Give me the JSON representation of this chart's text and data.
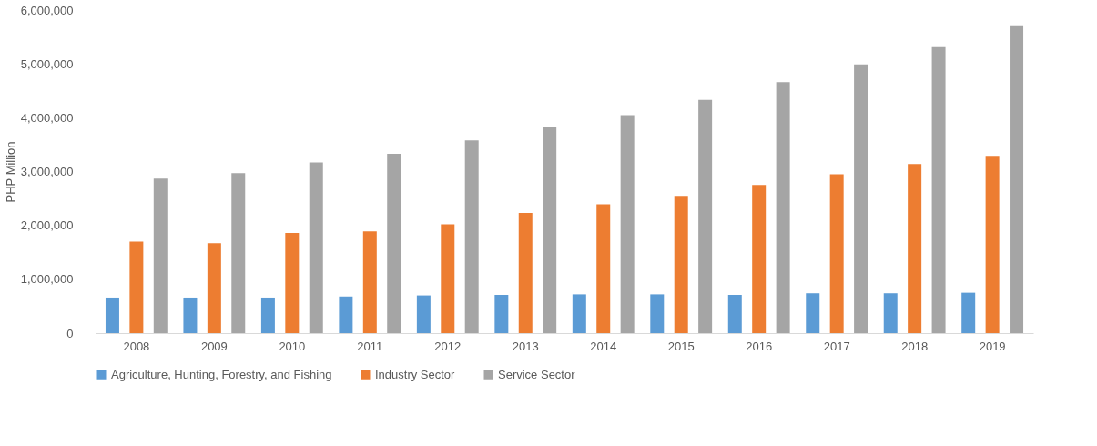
{
  "chart_data": {
    "type": "bar",
    "ylabel": "PHP Million",
    "categories": [
      "2008",
      "2009",
      "2010",
      "2011",
      "2012",
      "2013",
      "2014",
      "2015",
      "2016",
      "2017",
      "2018",
      "2019"
    ],
    "series": [
      {
        "name": "Agriculture, Hunting, Forestry, and Fishing",
        "color": "#5b9bd5",
        "values": [
          660000,
          660000,
          660000,
          680000,
          700000,
          710000,
          720000,
          720000,
          710000,
          740000,
          740000,
          750000
        ]
      },
      {
        "name": "Industry Sector",
        "color": "#ed7d31",
        "values": [
          1700000,
          1670000,
          1860000,
          1890000,
          2020000,
          2230000,
          2390000,
          2550000,
          2750000,
          2950000,
          3140000,
          3290000
        ]
      },
      {
        "name": "Service Sector",
        "color": "#a5a5a5",
        "values": [
          2870000,
          2970000,
          3170000,
          3330000,
          3580000,
          3830000,
          4050000,
          4330000,
          4660000,
          4990000,
          5310000,
          5700000
        ]
      }
    ],
    "ylim": [
      0,
      6000000
    ],
    "yticks": [
      0,
      {
        "value": 1000000,
        "label": "1,000,000"
      },
      {
        "value": 2000000,
        "label": "2,000,000"
      },
      {
        "value": 3000000,
        "label": "3,000,000"
      },
      {
        "value": 4000000,
        "label": "4,000,000"
      },
      {
        "value": 5000000,
        "label": "5,000,000"
      },
      {
        "value": 6000000,
        "label": "6,000,000"
      }
    ],
    "grid": false,
    "legend": "bottom"
  }
}
